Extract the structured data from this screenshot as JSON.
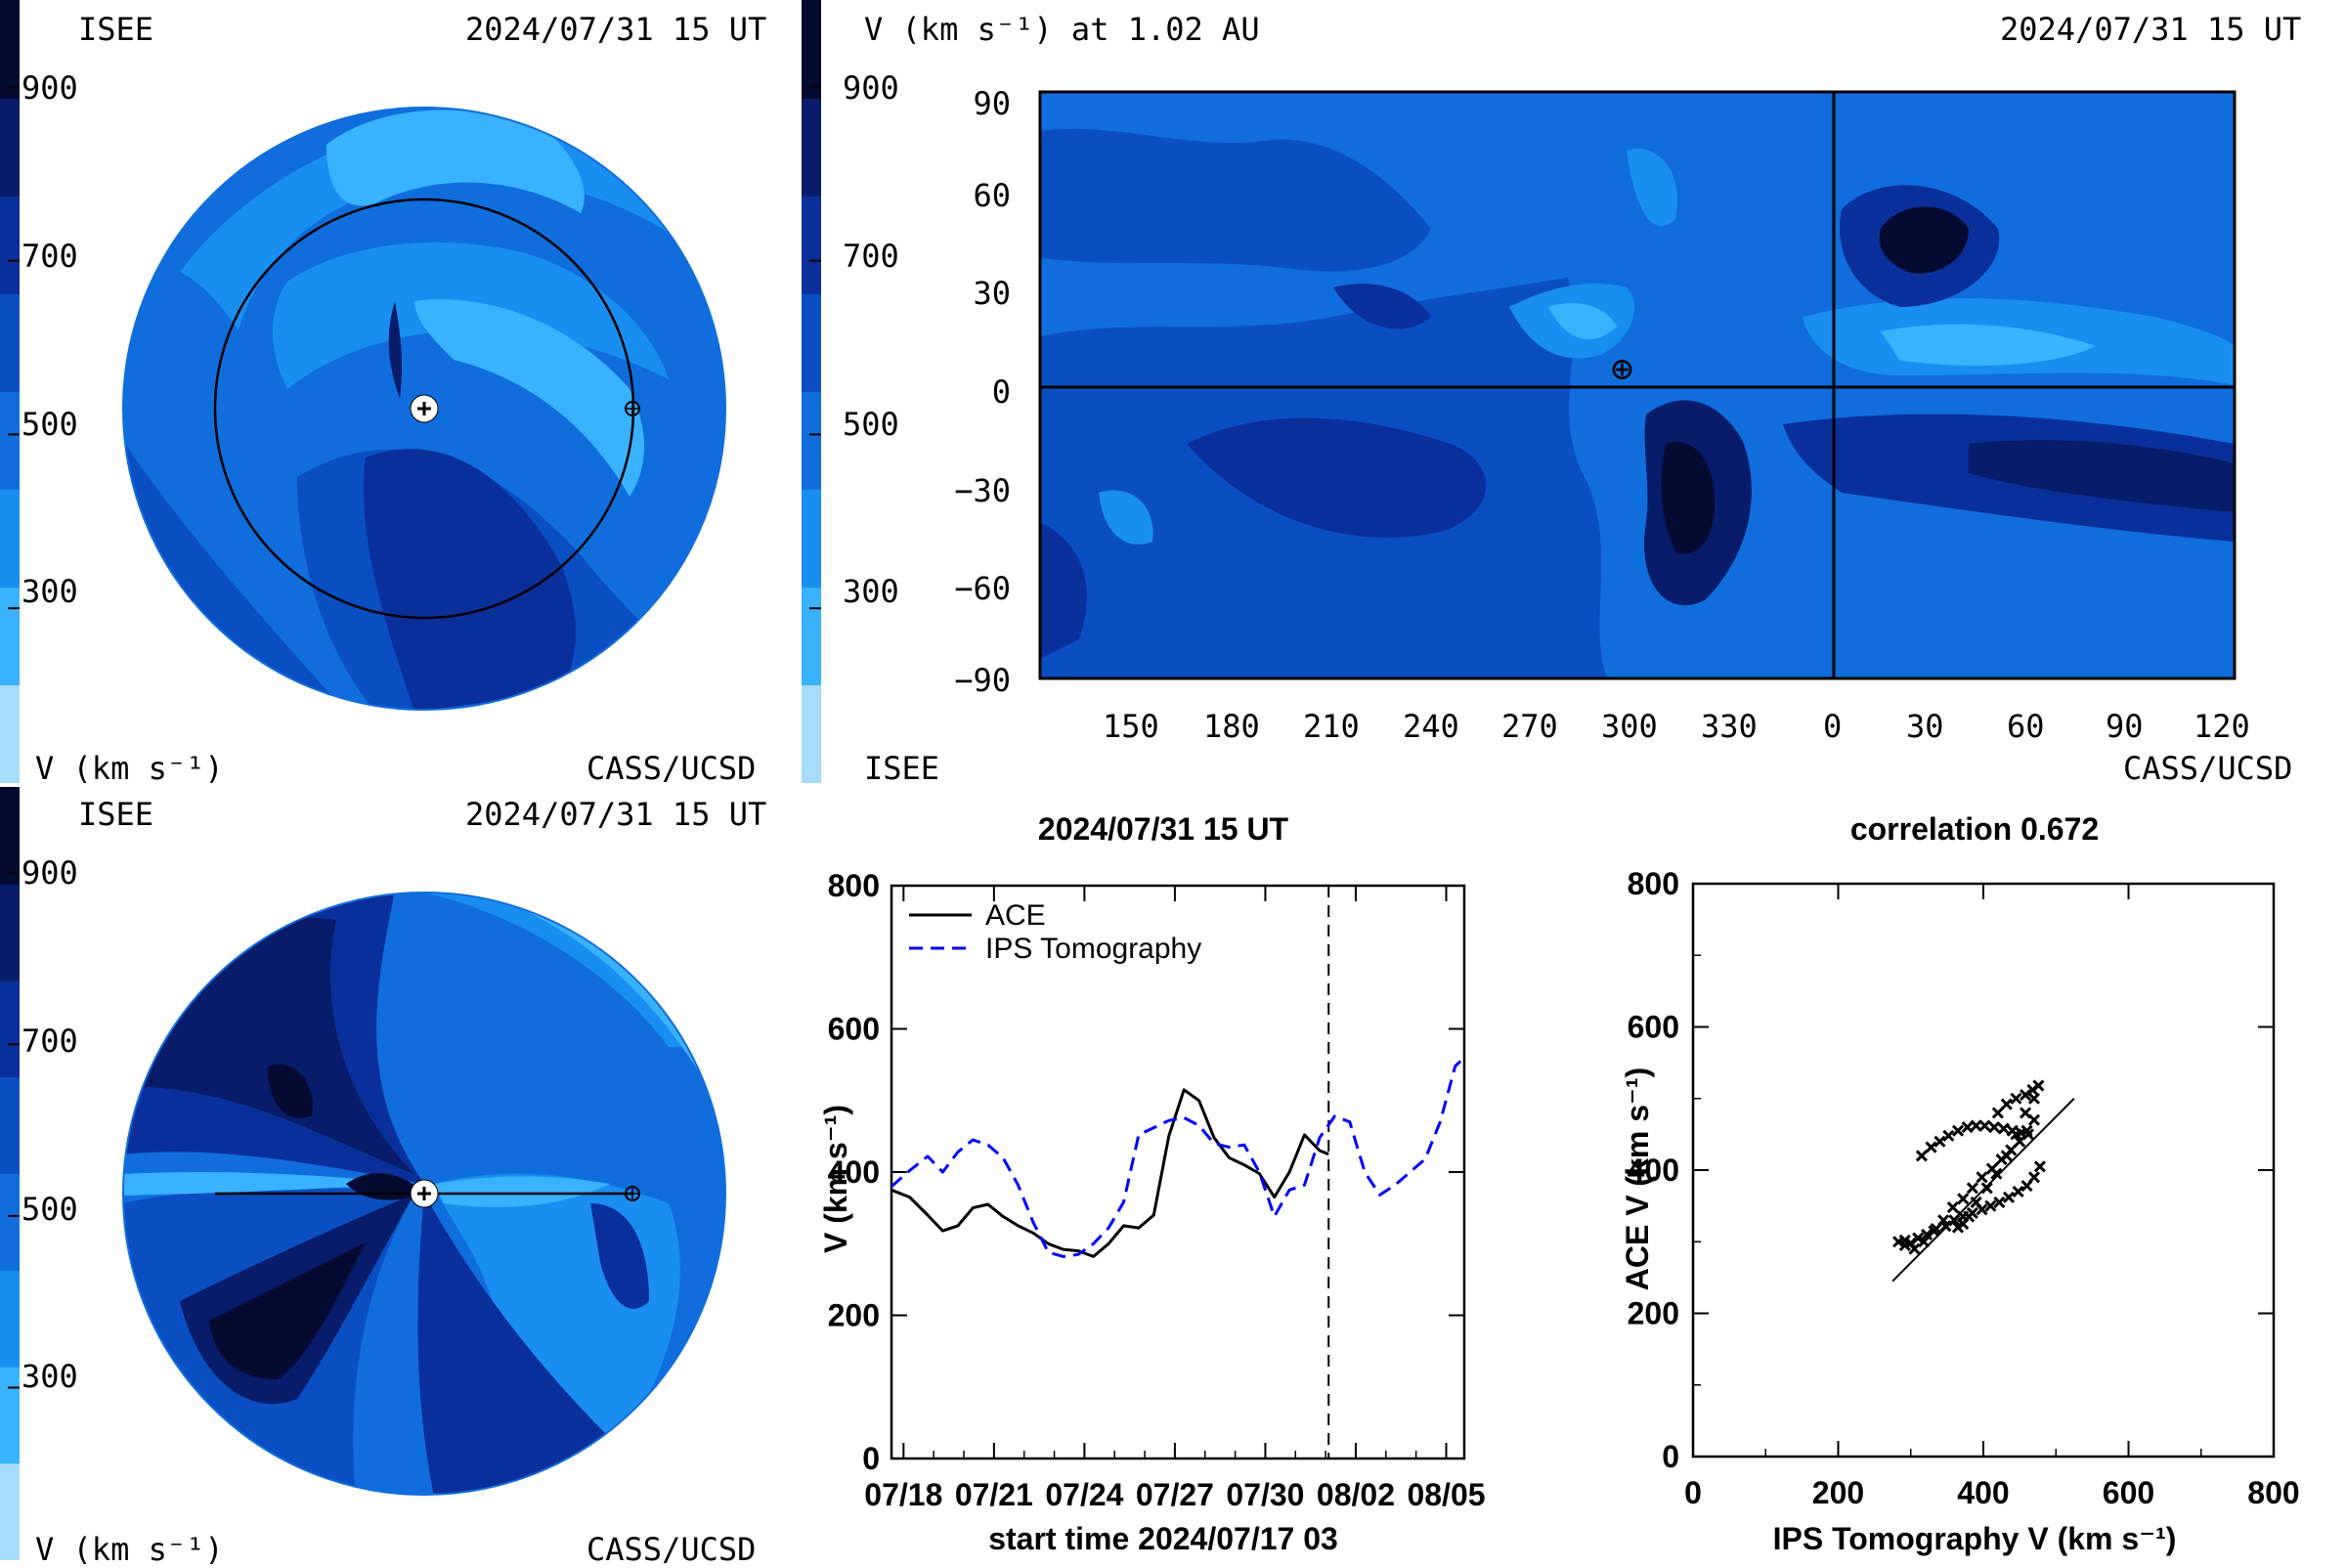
{
  "colors": {
    "scale": [
      "#a6dcfa",
      "#3ab2ff",
      "#1a8ef0",
      "#0f6edc",
      "#0a4fc2",
      "#0b2f9a",
      "#071c6a",
      "#020a30"
    ],
    "ace": "#000000",
    "ips": "#0000ff"
  },
  "colorbar": {
    "ticks": [
      {
        "value": 300,
        "label": "300"
      },
      {
        "value": 500,
        "label": "500"
      },
      {
        "value": 700,
        "label": "700"
      },
      {
        "value": 900,
        "label": "900"
      }
    ],
    "range": [
      100,
      1000
    ]
  },
  "panel_top_left": {
    "org": "ISEE",
    "timestamp": "2024/07/31 15 UT",
    "units": "V (km s⁻¹)",
    "credit": "CASS/UCSD"
  },
  "panel_top_right": {
    "title": "V (km s⁻¹) at 1.02 AU",
    "timestamp": "2024/07/31 15 UT",
    "org": "ISEE",
    "credit": "CASS/UCSD",
    "earth_symbol": "⊕",
    "y_ticks": [
      "90",
      "60",
      "30",
      "0",
      "−30",
      "−60",
      "−90"
    ],
    "x_ticks": [
      "150",
      "180",
      "210",
      "240",
      "270",
      "300",
      "330",
      "0",
      "30",
      "60",
      "90",
      "120"
    ]
  },
  "panel_bottom_left": {
    "org": "ISEE",
    "timestamp": "2024/07/31 15 UT",
    "units": "V (km s⁻¹)",
    "credit": "CASS/UCSD"
  },
  "chart_data": [
    {
      "type": "line",
      "title": "2024/07/31 15 UT",
      "xlabel": "start time 2024/07/17 03",
      "ylabel": "V (km s⁻¹)",
      "x_ticks": [
        "07/18",
        "07/21",
        "07/24",
        "07/27",
        "07/30",
        "08/02",
        "08/05"
      ],
      "y_ticks": [
        "0",
        "200",
        "400",
        "600",
        "800"
      ],
      "ylim": [
        0,
        800
      ],
      "xlim_days": [
        0.6,
        19.6
      ],
      "marker_day": 15.1,
      "legend": "top-left",
      "series": [
        {
          "name": "ACE",
          "style": "solid",
          "x": [
            0.6,
            1.2,
            1.8,
            2.3,
            2.8,
            3.3,
            3.8,
            4.3,
            4.8,
            5.3,
            5.8,
            6.3,
            6.8,
            7.3,
            7.8,
            8.3,
            8.8,
            9.3,
            9.8,
            10.3,
            10.8,
            11.3,
            11.8,
            12.3,
            12.8,
            13.3,
            13.8,
            14.3,
            14.8,
            15.1
          ],
          "y": [
            375,
            365,
            340,
            318,
            325,
            350,
            355,
            338,
            325,
            315,
            300,
            292,
            290,
            282,
            300,
            325,
            322,
            340,
            450,
            515,
            500,
            448,
            420,
            410,
            398,
            365,
            400,
            452,
            430,
            425
          ]
        },
        {
          "name": "IPS Tomography",
          "style": "dashed",
          "x": [
            0.6,
            1.2,
            1.8,
            2.3,
            2.8,
            3.3,
            3.8,
            4.3,
            4.8,
            5.3,
            5.8,
            6.3,
            6.8,
            7.3,
            7.8,
            8.3,
            8.8,
            9.3,
            9.8,
            10.3,
            10.8,
            11.3,
            11.8,
            12.3,
            12.8,
            13.3,
            13.8,
            14.3,
            14.8,
            15.3,
            15.8,
            16.3,
            16.8,
            17.3,
            17.8,
            18.3,
            18.8,
            19.3,
            19.6
          ],
          "y": [
            380,
            402,
            422,
            400,
            428,
            445,
            438,
            420,
            382,
            330,
            288,
            282,
            285,
            300,
            322,
            358,
            452,
            462,
            472,
            476,
            465,
            440,
            435,
            438,
            400,
            338,
            375,
            382,
            448,
            478,
            470,
            400,
            368,
            382,
            400,
            418,
            470,
            548,
            560
          ]
        }
      ]
    },
    {
      "type": "scatter",
      "title": "correlation 0.672",
      "xlabel": "IPS Tomography V (km s⁻¹)",
      "ylabel": "ACE V (km s⁻¹)",
      "x_ticks": [
        "0",
        "200",
        "400",
        "600",
        "800"
      ],
      "y_ticks": [
        "0",
        "200",
        "400",
        "600",
        "800"
      ],
      "xlim": [
        0,
        800
      ],
      "ylim": [
        0,
        800
      ],
      "fit_line": {
        "x": [
          275,
          525
        ],
        "y": [
          245,
          500
        ]
      },
      "points": {
        "x": [
          283,
          292,
          300,
          310,
          322,
          335,
          348,
          360,
          372,
          385,
          398,
          410,
          422,
          435,
          448,
          460,
          470,
          478,
          292,
          305,
          318,
          332,
          345,
          358,
          372,
          385,
          398,
          412,
          425,
          438,
          450,
          460,
          470,
          315,
          328,
          340,
          352,
          365,
          378,
          390,
          402,
          415,
          428,
          440,
          452,
          462,
          420,
          432,
          445,
          458,
          468,
          476,
          470,
          458,
          445,
          432,
          418,
          405,
          390,
          380,
          372,
          365
        ],
        "y": [
          300,
          302,
          298,
          305,
          310,
          318,
          322,
          330,
          335,
          340,
          345,
          350,
          355,
          362,
          370,
          378,
          390,
          405,
          295,
          290,
          300,
          315,
          330,
          348,
          360,
          375,
          390,
          402,
          415,
          428,
          440,
          455,
          470,
          420,
          432,
          440,
          448,
          455,
          460,
          462,
          462,
          460,
          458,
          455,
          452,
          450,
          480,
          492,
          500,
          505,
          512,
          518,
          500,
          480,
          450,
          420,
          395,
          375,
          355,
          335,
          325,
          320
        ]
      }
    }
  ]
}
